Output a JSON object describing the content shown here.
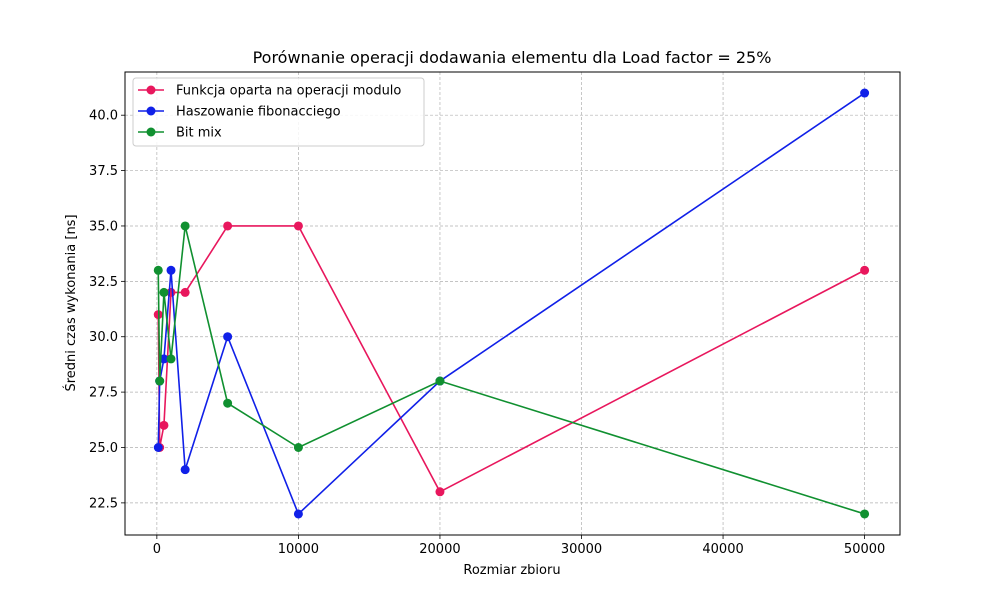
{
  "chart_data": {
    "type": "line",
    "title": "Porównanie operacji dodawania elementu dla Load factor = 25%",
    "xlabel": "Rozmiar zbioru",
    "ylabel": "Średni czas wykonania [ns]",
    "xlim": [
      -2250,
      52500
    ],
    "ylim": [
      21.05,
      41.95
    ],
    "x_ticks": [
      0,
      10000,
      20000,
      30000,
      40000,
      50000
    ],
    "y_ticks": [
      22.5,
      25.0,
      27.5,
      30.0,
      32.5,
      35.0,
      37.5,
      40.0
    ],
    "grid": true,
    "legend_position": "top-left",
    "x": [
      100,
      200,
      500,
      1000,
      2000,
      5000,
      10000,
      20000,
      50000
    ],
    "series": [
      {
        "name": "Funkcja oparta na operacji modulo",
        "color": "#e8175d",
        "values": [
          31,
          25,
          26,
          32,
          32,
          35,
          35,
          23,
          33
        ]
      },
      {
        "name": "Haszowanie fibonacciego",
        "color": "#1020e8",
        "values": [
          25,
          28,
          29,
          33,
          24,
          30,
          22,
          28,
          41
        ]
      },
      {
        "name": "Bit mix",
        "color": "#109030",
        "values": [
          33,
          28,
          32,
          29,
          35,
          27,
          25,
          28,
          22
        ]
      }
    ]
  }
}
